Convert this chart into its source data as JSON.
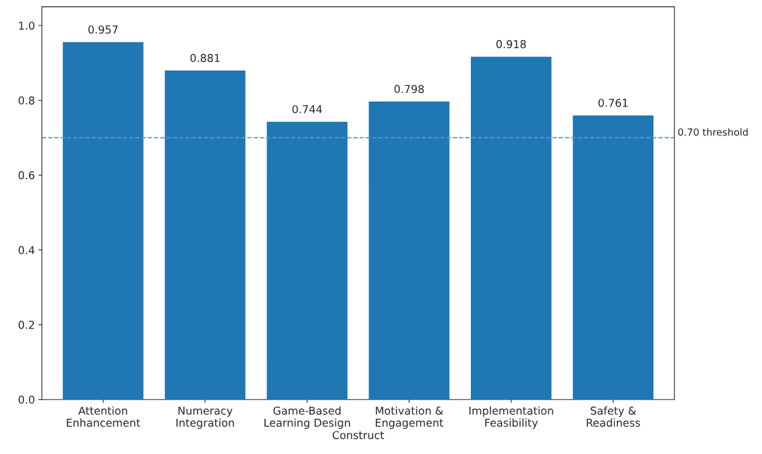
{
  "chart_data": {
    "type": "bar",
    "xlabel": "Construct",
    "categories": [
      "Attention\nEnhancement",
      "Numeracy\nIntegration",
      "Game-Based\nLearning Design",
      "Motivation &\nEngagement",
      "Implementation\nFeasibility",
      "Safety &\nReadiness"
    ],
    "values": [
      0.957,
      0.881,
      0.744,
      0.798,
      0.918,
      0.761
    ],
    "color": "#1f77b4",
    "data_labels": true,
    "ylim": [
      0,
      1.05
    ],
    "yticks": [
      {
        "value": 0,
        "label": "0.0"
      },
      {
        "value": 0.2,
        "label": "0.2"
      },
      {
        "value": 0.4,
        "label": "0.4"
      },
      {
        "value": 0.6,
        "label": "0.6"
      },
      {
        "value": 0.8,
        "label": "0.8"
      },
      {
        "value": 1,
        "label": "1.0"
      }
    ],
    "ref_lines": [
      {
        "axis": "y",
        "value": 0.7,
        "label": "0.70 threshold",
        "color": "#5f97c6",
        "line_style": "dashed"
      }
    ],
    "grid": false,
    "legend": false
  }
}
